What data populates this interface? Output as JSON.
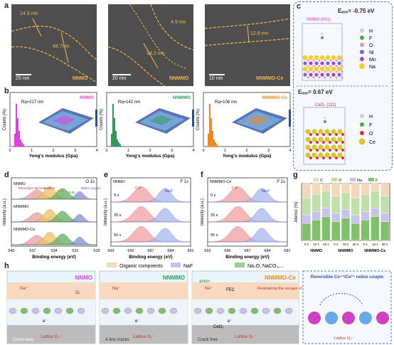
{
  "panel_labels": {
    "a": "a",
    "b": "b",
    "c": "c",
    "d": "d",
    "e": "e",
    "f": "f",
    "g": "g",
    "h": "h"
  },
  "panel_a": [
    {
      "sample": "NNMO",
      "scale": "25 nm",
      "dims": [
        "24.3 nm",
        "48.7nm"
      ]
    },
    {
      "sample": "NNMMO",
      "scale": "20 nm",
      "dims": [
        "4.9 nm",
        "34.2 nm"
      ]
    },
    {
      "sample": "NNMMO-Ce",
      "scale": "10 nm",
      "dims": [
        "12.9 nm"
      ]
    }
  ],
  "panel_b": [
    {
      "sample": "NNMO",
      "rq": "Rq=217 nm",
      "color": "#e040e0"
    },
    {
      "sample": "NNMMO",
      "rq": "Rq=142 nm",
      "color": "#2f9a5a"
    },
    {
      "sample": "NNMMO-Ce",
      "rq": "Rq=106 nm",
      "color": "#f08a1c"
    }
  ],
  "panel_b_axes": {
    "ylabel": "Counts (%)",
    "xlabel": "Yong's modulus (Gpa)",
    "xticks": [
      "0",
      "1",
      "2",
      "3",
      "4"
    ]
  },
  "panel_c": {
    "top": {
      "energy": "Eₐₓₓ= -0.75 eV",
      "struct": "NNMO (001)",
      "legend": [
        "H",
        "F",
        "O",
        "Ni",
        "Mn",
        "Na"
      ]
    },
    "bottom": {
      "energy": "Eₐₓₓ= 0.67 eV",
      "struct": "CeO₂ (111)",
      "legend": [
        "H",
        "F",
        "O",
        "Ce"
      ]
    }
  },
  "panel_d": {
    "title": "O 1s",
    "samples": [
      "NNMO",
      "NNMMO",
      "NNMMO-Ce"
    ],
    "peaks": [
      "Electrolyte decomposition",
      "C-O",
      "C=O",
      "O-M",
      "lattice oxygen"
    ],
    "xlabel": "Binding energy (eV)",
    "ylabel": "Intensity (a.u.)",
    "xticks": [
      "540",
      "537",
      "534",
      "531",
      "528"
    ]
  },
  "panel_e": {
    "sample": "NNMO",
    "title": "F 1s",
    "peaks": [
      "C-F",
      "Na-F"
    ],
    "depths": [
      "0 s",
      "20 s",
      "50 s"
    ],
    "xlabel": "Binding energy (eV)",
    "xticks": [
      "693",
      "690",
      "687",
      "684",
      "681"
    ]
  },
  "panel_f": {
    "sample": "NNMMO-Ce",
    "title": "F 1s",
    "peaks": [
      "C-F",
      "Na-F"
    ],
    "depths": [
      "0 s",
      "25 s",
      "90 s"
    ],
    "xlabel": "Binding energy (eV)",
    "xticks": [
      "693",
      "690",
      "687",
      "684",
      "681"
    ]
  },
  "panel_g": {
    "legend": [
      "C",
      "O",
      "Na",
      "F"
    ],
    "ylabel": "Atomic (%)",
    "groups": [
      "NNMO",
      "NNMMO",
      "NNMMO-Ce"
    ],
    "depths": [
      "0 s",
      "10 s",
      "20 s",
      "0 s",
      "10 s",
      "30 s",
      "0 s",
      "10 s",
      "30 s"
    ],
    "colors": {
      "C": "#f3d7b8",
      "O": "#bfe0a8",
      "Na": "#c8c3ec",
      "F": "#7fc06a"
    }
  },
  "panel_h": {
    "legend": [
      "Organic compoents",
      "NaF",
      "Na₂O, NaCO₃,..."
    ],
    "samples": [
      "NNMO",
      "NNMMO",
      "NNMMO-Ce"
    ],
    "inset_title": "Reversible Ce⁴⁺/Ce³⁺ redox couple",
    "labels": {
      "crack_easy": "Crack easy",
      "few_cracks": "A few cracks",
      "crack_free": "Crack free",
      "lattice_o": "Lattice O₂⁻",
      "anion": "anion",
      "fec": "FEC",
      "restrain": "Restraining the escape of lattice O²⁻",
      "ceo2": "CeO₂",
      "na": "Na⁺",
      "o2": "O₂",
      "e": "e⁻"
    }
  }
}
